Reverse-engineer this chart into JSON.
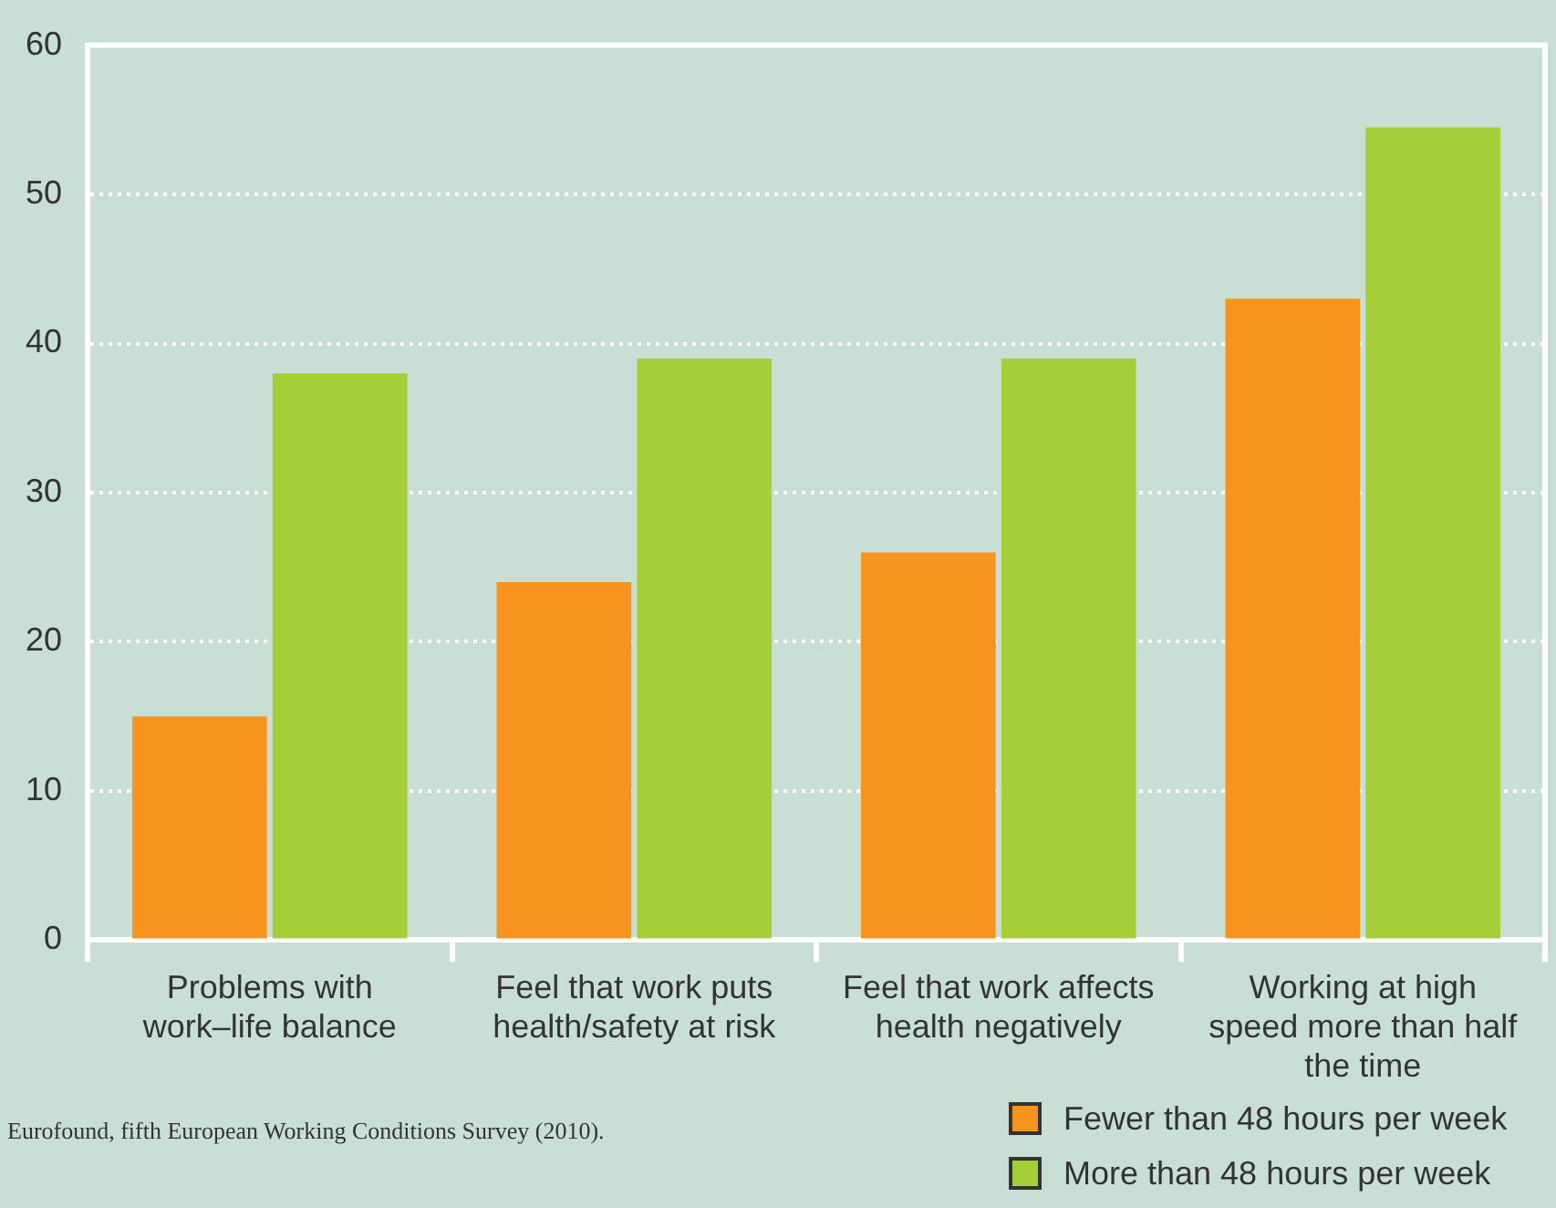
{
  "chart_data": {
    "type": "bar",
    "categories": [
      "Problems with work–life balance",
      "Feel that work puts health/safety at risk",
      "Feel that work affects health negatively",
      "Working at high speed more than half the time"
    ],
    "series": [
      {
        "name": "Fewer than 48 hours per week",
        "color": "#f7941d",
        "values": [
          15,
          24,
          26,
          43
        ]
      },
      {
        "name": "More than 48 hours per week",
        "color": "#a6ce39",
        "values": [
          38,
          39,
          39,
          54.5
        ]
      }
    ],
    "ylim": [
      0,
      60
    ],
    "yticks": [
      0,
      10,
      20,
      30,
      40,
      50,
      60
    ],
    "grid": "y",
    "legend": "bottom right",
    "annotations": [
      "Eurofound, fifth European Working Conditions Survey (2010)."
    ]
  }
}
